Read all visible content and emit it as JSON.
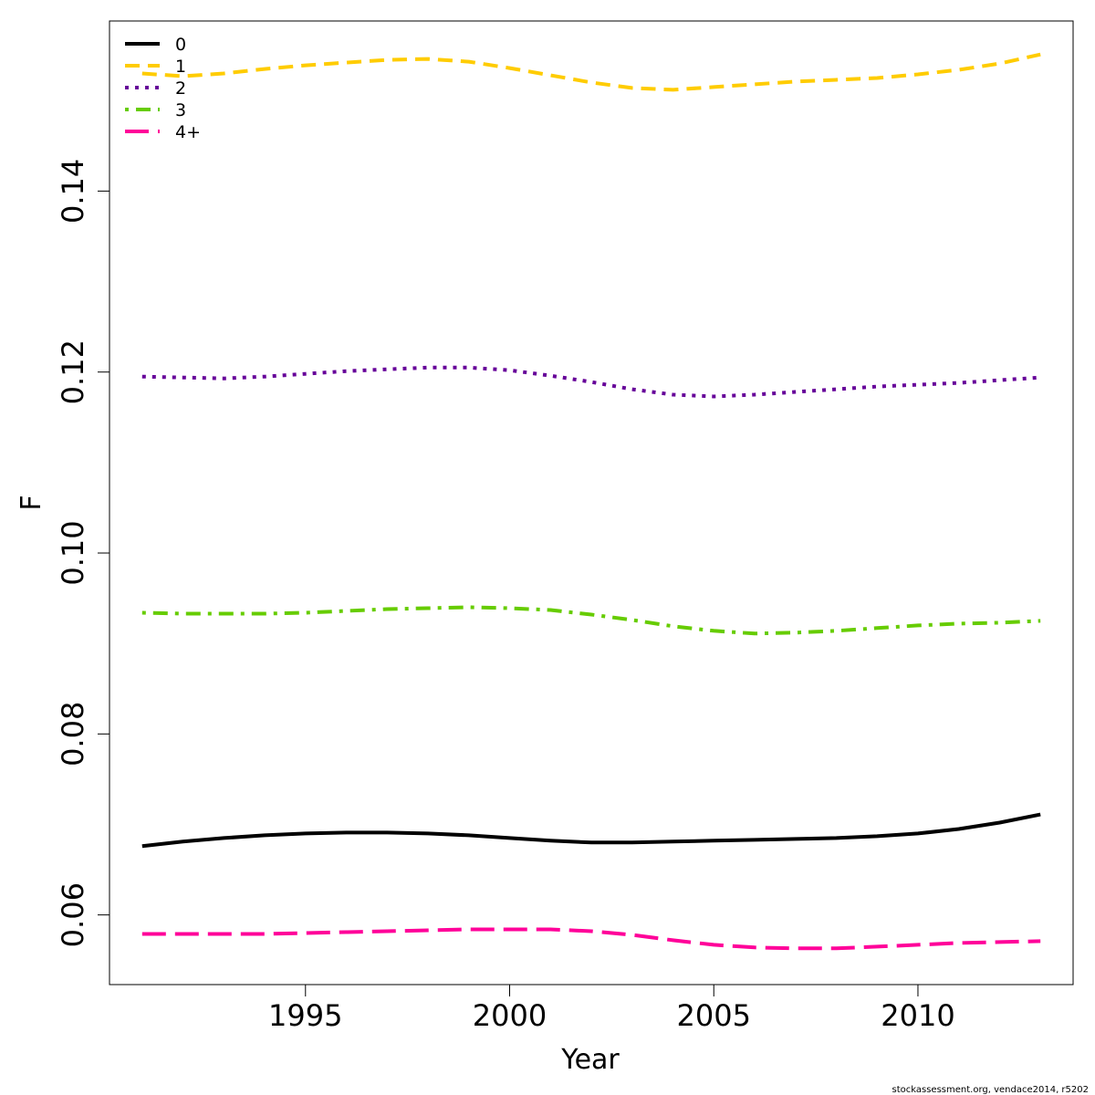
{
  "chart_data": {
    "type": "line",
    "title": "",
    "xlabel": "Year",
    "ylabel": "F",
    "xlim": [
      1990.2,
      2013.8
    ],
    "ylim": [
      0.0523,
      0.1588
    ],
    "xticks": [
      1995,
      2000,
      2005,
      2010
    ],
    "yticks": [
      0.06,
      0.08,
      0.1,
      0.12,
      0.14
    ],
    "ytick_labels": [
      "0.06",
      "0.08",
      "0.10",
      "0.12",
      "0.14"
    ],
    "grid": false,
    "legend_position": "top-left",
    "x": [
      1991,
      1992,
      1993,
      1994,
      1995,
      1996,
      1997,
      1998,
      1999,
      2000,
      2001,
      2002,
      2003,
      2004,
      2005,
      2006,
      2007,
      2008,
      2009,
      2010,
      2011,
      2012,
      2013
    ],
    "series": [
      {
        "name": "0",
        "color": "#000000",
        "dash": "solid",
        "values": [
          0.0676,
          0.0681,
          0.0685,
          0.0688,
          0.069,
          0.0691,
          0.0691,
          0.069,
          0.0688,
          0.0685,
          0.0682,
          0.068,
          0.068,
          0.0681,
          0.0682,
          0.0683,
          0.0684,
          0.0685,
          0.0687,
          0.069,
          0.0695,
          0.0702,
          0.0711
        ]
      },
      {
        "name": "1",
        "color": "#FFCC00",
        "dash": "dashed",
        "values": [
          0.153,
          0.1527,
          0.153,
          0.1535,
          0.1539,
          0.1542,
          0.1545,
          0.1546,
          0.1543,
          0.1536,
          0.1528,
          0.152,
          0.1514,
          0.1512,
          0.1515,
          0.1518,
          0.1521,
          0.1523,
          0.1525,
          0.1529,
          0.1534,
          0.1541,
          0.1551
        ]
      },
      {
        "name": "2",
        "color": "#660099",
        "dash": "dotted",
        "values": [
          0.1195,
          0.1194,
          0.1193,
          0.1195,
          0.1198,
          0.1201,
          0.1203,
          0.1205,
          0.1205,
          0.1202,
          0.1196,
          0.1189,
          0.1181,
          0.1175,
          0.1173,
          0.1175,
          0.1178,
          0.1181,
          0.1184,
          0.1186,
          0.1188,
          0.1191,
          0.1194
        ]
      },
      {
        "name": "3",
        "color": "#66CC00",
        "dash": "dotdash",
        "values": [
          0.0934,
          0.0933,
          0.0933,
          0.0933,
          0.0934,
          0.0936,
          0.0938,
          0.0939,
          0.094,
          0.0939,
          0.0937,
          0.0932,
          0.0926,
          0.0919,
          0.0914,
          0.0911,
          0.0912,
          0.0914,
          0.0917,
          0.092,
          0.0922,
          0.0923,
          0.0925
        ]
      },
      {
        "name": "4+",
        "color": "#FF0099",
        "dash": "longdash",
        "values": [
          0.0579,
          0.0579,
          0.0579,
          0.0579,
          0.058,
          0.0581,
          0.0582,
          0.0583,
          0.0584,
          0.0584,
          0.0584,
          0.0582,
          0.0578,
          0.0572,
          0.0567,
          0.0564,
          0.0563,
          0.0563,
          0.0565,
          0.0567,
          0.0569,
          0.057,
          0.0571
        ]
      }
    ]
  },
  "footer": "stockassessment.org, vendace2014, r5202"
}
